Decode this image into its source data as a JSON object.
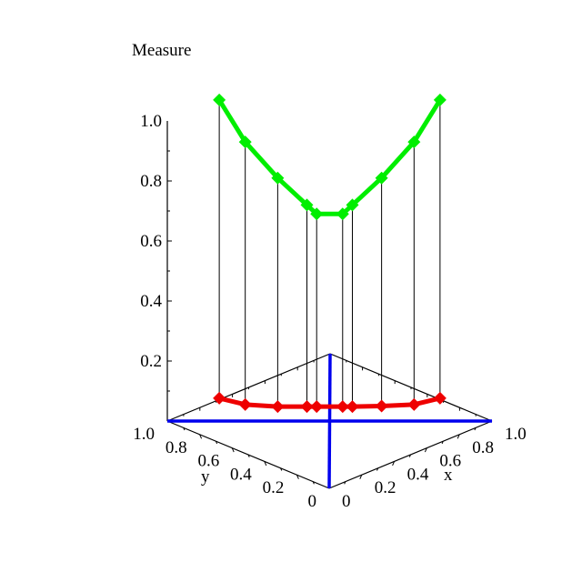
{
  "chart_data": {
    "type": "line3d",
    "title": "Measure",
    "xlabel": "x",
    "ylabel": "y",
    "zlabel": "",
    "xlim": [
      0,
      1
    ],
    "ylim": [
      0,
      1
    ],
    "zlim": [
      0,
      1
    ],
    "x_ticks": [
      "0",
      "0.2",
      "0.4",
      "0.6",
      "0.8",
      "1.0"
    ],
    "y_ticks": [
      "0",
      "0.2",
      "0.4",
      "0.6",
      "0.8",
      "1.0"
    ],
    "z_ticks": [
      "0.2",
      "0.4",
      "0.6",
      "0.8",
      "1.0"
    ],
    "points_xy": [
      [
        0.16,
        0.84
      ],
      [
        0.24,
        0.76
      ],
      [
        0.34,
        0.66
      ],
      [
        0.43,
        0.57
      ],
      [
        0.46,
        0.54
      ],
      [
        0.54,
        0.46
      ],
      [
        0.57,
        0.43
      ],
      [
        0.66,
        0.34
      ],
      [
        0.76,
        0.24
      ],
      [
        0.84,
        0.16
      ]
    ],
    "series": [
      {
        "color": "#00ee00",
        "z": [
          1.07,
          0.93,
          0.81,
          0.72,
          0.69,
          0.69,
          0.72,
          0.81,
          0.93,
          1.07
        ]
      },
      {
        "color": "#ee0000",
        "z": [
          0.076,
          0.055,
          0.048,
          0.048,
          0.048,
          0.048,
          0.048,
          0.05,
          0.055,
          0.076
        ]
      }
    ],
    "stems": true,
    "diagonals_color": "#0000ee",
    "grid": false
  }
}
